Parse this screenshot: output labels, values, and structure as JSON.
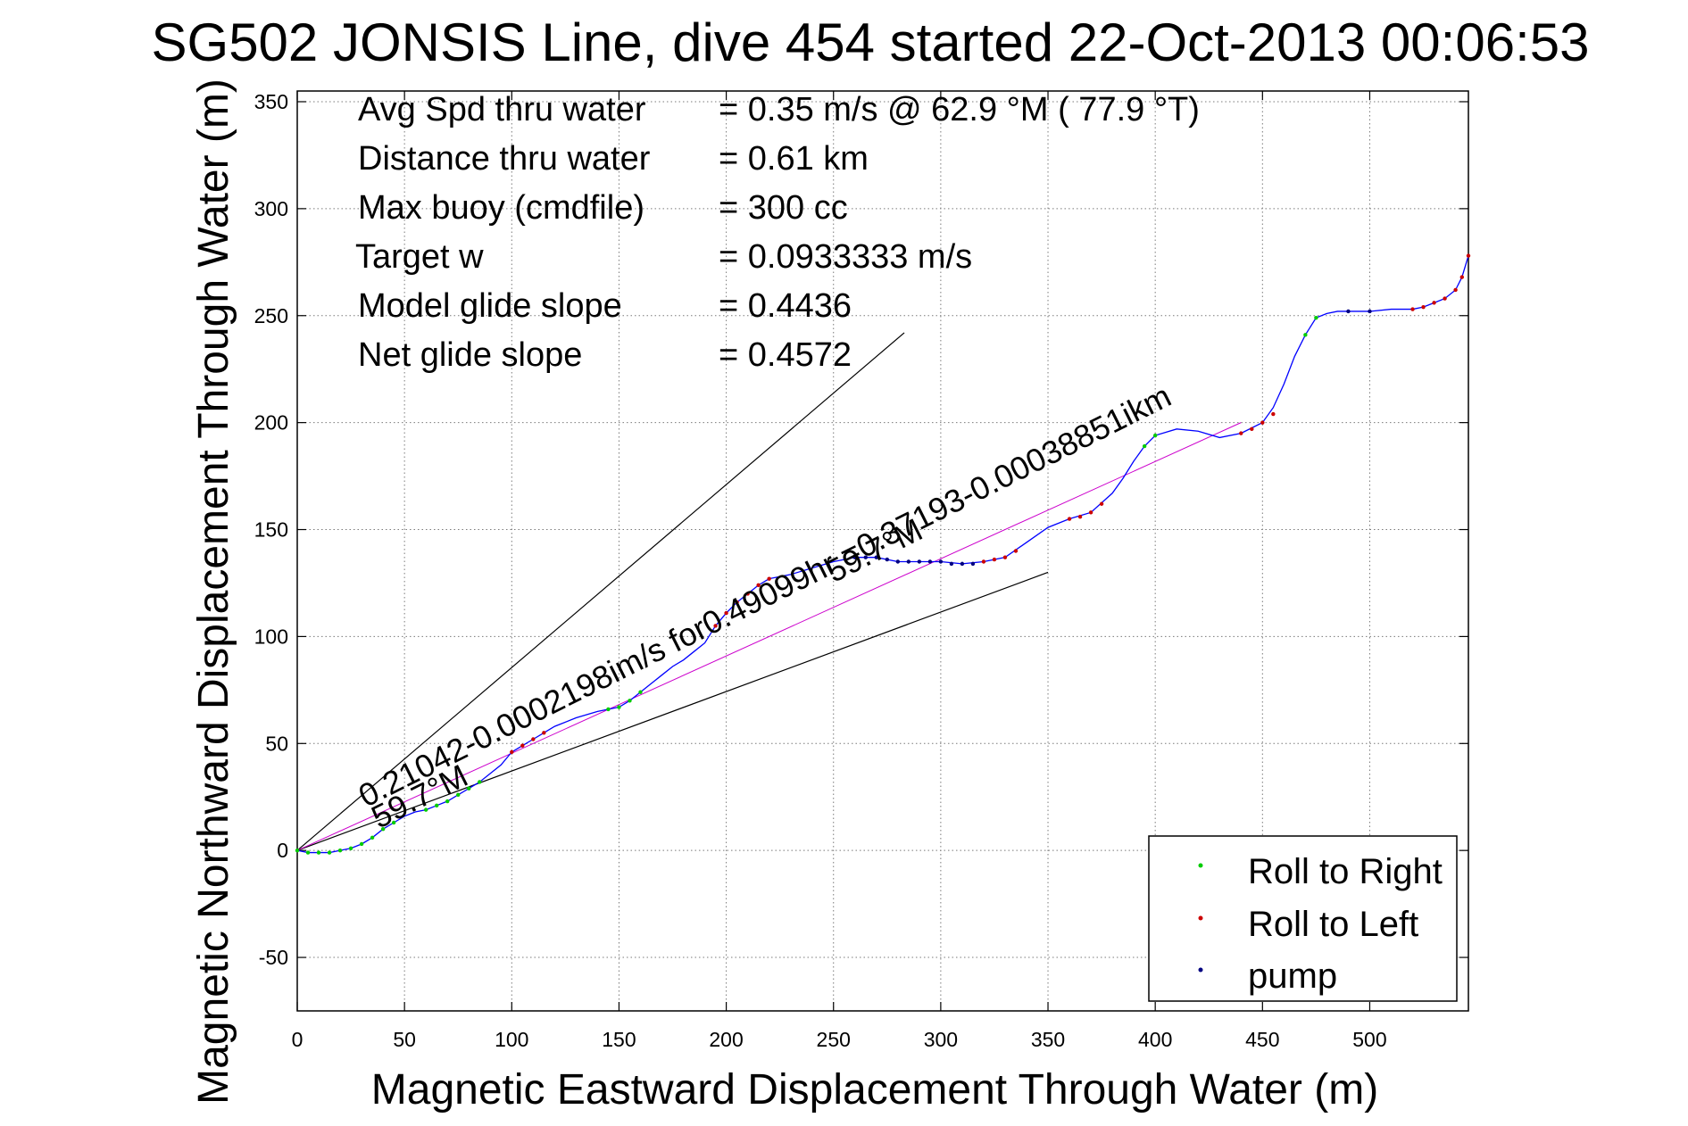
{
  "chart_data": {
    "type": "line",
    "title": "SG502 JONSIS Line, dive 454 started 22-Oct-2013 00:06:53",
    "xlabel": "Magnetic Eastward Displacement Through Water (m)",
    "ylabel": "Magnetic Northward Displacement Through Water (m)",
    "xlim": [
      0,
      546
    ],
    "ylim": [
      -75,
      355
    ],
    "xticks": [
      0,
      50,
      100,
      150,
      200,
      250,
      300,
      350,
      400,
      450,
      500
    ],
    "yticks": [
      -50,
      0,
      50,
      100,
      150,
      200,
      250,
      300,
      350
    ],
    "grid": true,
    "legend": {
      "placement": "bottom-right",
      "entries": [
        {
          "label": "Roll to Right",
          "color": "#00cc00"
        },
        {
          "label": "Roll to Left",
          "color": "#cc0000"
        },
        {
          "label": "pump",
          "color": "#000080"
        }
      ]
    },
    "info": [
      {
        "label": "Avg Spd thru water",
        "value": "=  0.35 m/s @  62.9 °M ( 77.9 °T)"
      },
      {
        "label": "Distance thru water",
        "value": "=  0.61 km"
      },
      {
        "label": "Max buoy (cmdfile)",
        "value": "= 300 cc"
      },
      {
        "label": "Target w",
        "value": "= 0.0933333 m/s"
      },
      {
        "label": "Model glide slope",
        "value": "= 0.4436"
      },
      {
        "label": "Net glide slope",
        "value": "= 0.4572"
      }
    ],
    "annotations": [
      {
        "text": "0.21042-0.0002198im/s for0.49099hr =0.37193-0.00038851ikm",
        "x": 32,
        "y": 20
      },
      {
        "text": "59.7°M",
        "x": 38,
        "y": 10
      },
      {
        "text": "59.7°M",
        "x": 250,
        "y": 125
      }
    ],
    "reference_lines": [
      {
        "name": "upper-bound",
        "points": [
          [
            0,
            0
          ],
          [
            283,
            242
          ]
        ],
        "color": "#000000"
      },
      {
        "name": "lower-bound",
        "points": [
          [
            0,
            0
          ],
          [
            350,
            130
          ]
        ],
        "color": "#000000"
      },
      {
        "name": "mean-track",
        "points": [
          [
            0,
            0
          ],
          [
            440,
            200
          ]
        ],
        "color": "#cc00cc"
      }
    ],
    "series": [
      {
        "name": "track",
        "color": "#0000ff",
        "x": [
          0,
          5,
          10,
          15,
          20,
          25,
          30,
          35,
          40,
          45,
          50,
          55,
          60,
          65,
          70,
          75,
          80,
          85,
          90,
          95,
          100,
          105,
          110,
          115,
          120,
          130,
          140,
          150,
          155,
          160,
          165,
          170,
          175,
          180,
          185,
          190,
          195,
          200,
          205,
          210,
          215,
          220,
          230,
          240,
          250,
          260,
          270,
          280,
          290,
          300,
          310,
          320,
          330,
          340,
          350,
          360,
          370,
          380,
          385,
          390,
          395,
          400,
          410,
          420,
          430,
          440,
          450,
          455,
          460,
          465,
          470,
          475,
          480,
          485,
          490,
          500,
          510,
          520,
          525,
          530,
          535,
          540,
          543,
          546
        ],
        "y": [
          0,
          -1,
          -1,
          -1,
          0,
          1,
          3,
          6,
          10,
          13,
          16,
          18,
          19,
          21,
          23,
          26,
          29,
          32,
          36,
          40,
          46,
          49,
          52,
          55,
          58,
          62,
          65,
          67,
          70,
          74,
          78,
          82,
          86,
          89,
          93,
          97,
          105,
          111,
          116,
          120,
          124,
          127,
          129,
          132,
          135,
          137,
          137,
          135,
          135,
          135,
          134,
          135,
          137,
          144,
          151,
          155,
          158,
          167,
          174,
          182,
          189,
          194,
          197,
          196,
          193,
          195,
          200,
          207,
          218,
          231,
          241,
          249,
          251,
          252,
          252,
          252,
          253,
          253,
          254,
          256,
          258,
          262,
          268,
          278
        ]
      },
      {
        "name": "Roll to Right",
        "color": "#00cc00",
        "x": [
          0,
          5,
          10,
          15,
          20,
          25,
          30,
          35,
          40,
          45,
          60,
          65,
          70,
          75,
          80,
          85,
          145,
          150,
          155,
          160,
          395,
          400,
          470,
          475
        ],
        "y": [
          0,
          -1,
          -1,
          -1,
          0,
          1,
          3,
          6,
          10,
          13,
          19,
          21,
          23,
          26,
          29,
          32,
          66,
          67,
          70,
          74,
          189,
          194,
          241,
          249
        ]
      },
      {
        "name": "Roll to Left",
        "color": "#cc0000",
        "x": [
          100,
          105,
          110,
          115,
          195,
          200,
          205,
          210,
          215,
          220,
          320,
          325,
          330,
          335,
          360,
          365,
          370,
          375,
          440,
          445,
          450,
          455,
          520,
          525,
          530,
          535,
          540,
          543,
          546
        ],
        "y": [
          46,
          49,
          52,
          55,
          105,
          111,
          116,
          120,
          124,
          127,
          135,
          136,
          137,
          140,
          155,
          156,
          158,
          162,
          195,
          197,
          200,
          204,
          253,
          254,
          256,
          258,
          262,
          268,
          278
        ]
      },
      {
        "name": "pump",
        "color": "#000080",
        "x": [
          260,
          265,
          270,
          275,
          280,
          285,
          290,
          295,
          300,
          305,
          310,
          315,
          490,
          500
        ],
        "y": [
          137,
          137,
          137,
          136,
          135,
          135,
          135,
          135,
          135,
          134,
          134,
          134,
          252,
          252
        ]
      }
    ]
  }
}
